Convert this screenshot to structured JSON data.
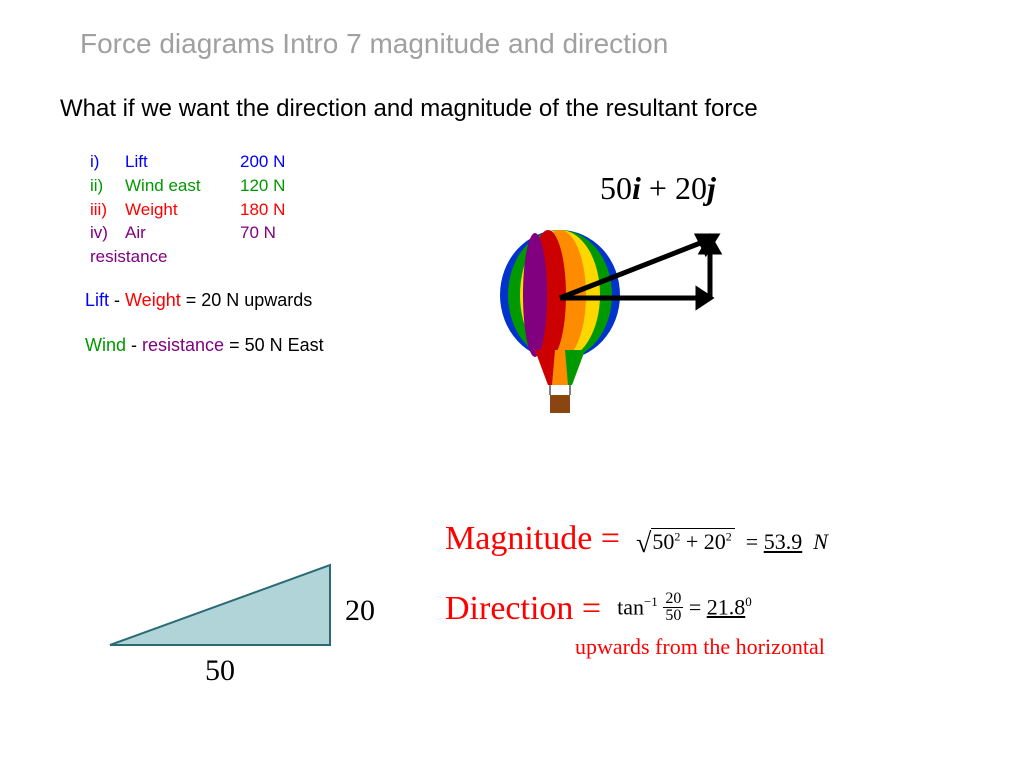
{
  "title": "Force diagrams Intro 7 magnitude and direction",
  "question": "What if we want the direction and magnitude of the resultant force",
  "forces": [
    {
      "num": "i)",
      "name": "Lift",
      "value": "200 N",
      "color": "#0000ff"
    },
    {
      "num": "ii)",
      "name": "Wind east",
      "value": "120 N",
      "color": "#009900"
    },
    {
      "num": "iii)",
      "name": "Weight",
      "value": "180 N",
      "color": "#ff0000"
    },
    {
      "num": "iv)",
      "name": "Air",
      "value": " 70 N",
      "color": "#800080"
    }
  ],
  "resistance_label": "resistance",
  "resistance_color": "#800080",
  "eq1": {
    "parts": [
      {
        "text": "Lift",
        "color": "#0000ff"
      },
      {
        "text": " - ",
        "color": "#000"
      },
      {
        "text": "Weight",
        "color": "#ff0000"
      },
      {
        "text": " = ",
        "color": "#000"
      },
      {
        "text": "20 N upwards",
        "color": "#000"
      }
    ]
  },
  "eq2": {
    "parts": [
      {
        "text": "Wind",
        "color": "#009900"
      },
      {
        "text": " - ",
        "color": "#000"
      },
      {
        "text": "resistance",
        "color": "#800080"
      },
      {
        "text": " = ",
        "color": "#000"
      },
      {
        "text": "50 N East",
        "color": "#000"
      }
    ]
  },
  "vector_result": {
    "x": "50",
    "y": "20"
  },
  "balloon": {
    "stripe_colors": [
      "#800080",
      "#cc0000",
      "#ff8c00",
      "#ffd700",
      "#009900",
      "#0033cc"
    ],
    "basket_color": "#8b4513"
  },
  "triangle": {
    "base": "50",
    "height": "20",
    "fill": "#b0d4d8",
    "stroke": "#2a6b75",
    "label_fontsize": 30
  },
  "magnitude": {
    "label": "Magnitude =",
    "expr_a": "50",
    "expr_b": "20",
    "result": "53.9",
    "unit": "N"
  },
  "direction": {
    "label": "Direction  =",
    "num": "20",
    "den": "50",
    "result": "21.8",
    "note": "upwards from the horizontal"
  }
}
